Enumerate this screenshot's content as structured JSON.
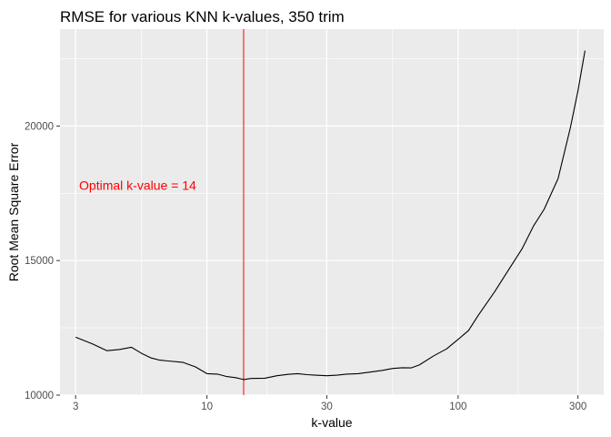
{
  "chart_data": {
    "type": "line",
    "title": "RMSE for various KNN k-values, 350 trim",
    "xlabel": "k-value",
    "ylabel": "Root Mean Square Error",
    "x_scale": "log10",
    "xlim": [
      2.6,
      380
    ],
    "ylim": [
      10000,
      23600
    ],
    "x_ticks": [
      3,
      10,
      30,
      100,
      300
    ],
    "y_ticks": [
      10000,
      15000,
      20000
    ],
    "grid": true,
    "legend": "none",
    "colors": {
      "line": "#000000",
      "vline": "#ff0000",
      "annotation": "#ff0000",
      "panel": "#ebebeb",
      "grid": "#ffffff"
    },
    "vline_x": 14,
    "annotation": {
      "text": "Optimal k-value =  14",
      "x": 5.3,
      "y": 17800
    },
    "series": [
      {
        "x": [
          3,
          3.5,
          4,
          4.5,
          5,
          5.5,
          6,
          6.5,
          7,
          8,
          9,
          10,
          11,
          12,
          13,
          14,
          15,
          17,
          19,
          21,
          23,
          25,
          27,
          30,
          33,
          36,
          40,
          45,
          50,
          55,
          60,
          65,
          70,
          80,
          90,
          100,
          110,
          120,
          140,
          160,
          180,
          200,
          220,
          250,
          280,
          300,
          320
        ],
        "y": [
          12150,
          11900,
          11650,
          11700,
          11780,
          11550,
          11380,
          11300,
          11270,
          11220,
          11050,
          10800,
          10780,
          10690,
          10650,
          10580,
          10620,
          10630,
          10720,
          10770,
          10800,
          10760,
          10740,
          10720,
          10740,
          10780,
          10800,
          10860,
          10920,
          10990,
          11020,
          11010,
          11120,
          11460,
          11720,
          12070,
          12400,
          12950,
          13850,
          14700,
          15450,
          16300,
          16900,
          18050,
          19950,
          21300,
          22800
        ]
      }
    ]
  }
}
